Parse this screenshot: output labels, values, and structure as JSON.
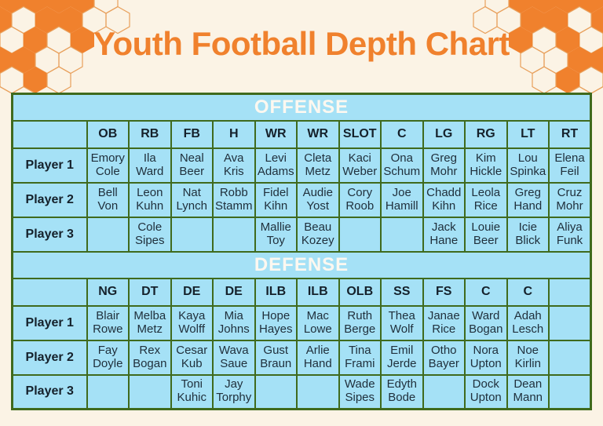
{
  "title": "Youth Football Depth Chart",
  "colors": {
    "orange": "#F0812D",
    "cell_blue": "#A5E1F6",
    "border_green": "#3F6A1D",
    "background": "#FBF3E5",
    "text_dark": "#20303C",
    "band_text": "#FDF8F0",
    "hex_outline": "#E8A05C"
  },
  "row_labels": [
    "Player 1",
    "Player 2",
    "Player 3"
  ],
  "sections": [
    {
      "name": "OFFENSE",
      "positions": [
        "OB",
        "RB",
        "FB",
        "H",
        "WR",
        "WR",
        "SLOT",
        "C",
        "LG",
        "RG",
        "LT",
        "RT"
      ],
      "rows": [
        [
          "Emory Cole",
          "Ila Ward",
          "Neal Beer",
          "Ava Kris",
          "Levi Adams",
          "Cleta Metz",
          "Kaci Weber",
          "Ona Schum",
          "Greg Mohr",
          "Kim Hickle",
          "Lou Spinka",
          "Elena Feil"
        ],
        [
          "Bell Von",
          "Leon Kuhn",
          "Nat Lynch",
          "Robb Stamm",
          "Fidel Kihn",
          "Audie Yost",
          "Cory Roob",
          "Joe Hamill",
          "Chadd Kihn",
          "Leola Rice",
          "Greg Hand",
          "Cruz Mohr"
        ],
        [
          "",
          "Cole Sipes",
          "",
          "",
          "Mallie Toy",
          "Beau Kozey",
          "",
          "",
          "Jack Hane",
          "Louie Beer",
          "Icie Blick",
          "Aliya Funk"
        ]
      ]
    },
    {
      "name": "DEFENSE",
      "positions": [
        "NG",
        "DT",
        "DE",
        "DE",
        "ILB",
        "ILB",
        "OLB",
        "SS",
        "FS",
        "C",
        "C",
        ""
      ],
      "rows": [
        [
          "Blair Rowe",
          "Melba Metz",
          "Kaya Wolff",
          "Mia Johns",
          "Hope Hayes",
          "Mac Lowe",
          "Ruth Berge",
          "Thea Wolf",
          "Janae Rice",
          "Ward Bogan",
          "Adah Lesch",
          ""
        ],
        [
          "Fay Doyle",
          "Rex Bogan",
          "Cesar Kub",
          "Wava Saue",
          "Gust Braun",
          "Arlie Hand",
          "Tina Frami",
          "Emil Jerde",
          "Otho Bayer",
          "Nora Upton",
          "Noe Kirlin",
          ""
        ],
        [
          "",
          "",
          "Toni Kuhic",
          "Jay Torphy",
          "",
          "",
          "Wade Sipes",
          "Edyth Bode",
          "",
          "Dock Upton",
          "Dean Mann",
          ""
        ]
      ]
    }
  ]
}
